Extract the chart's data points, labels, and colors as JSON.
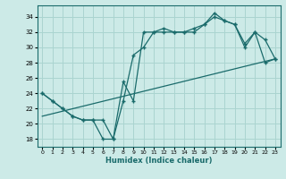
{
  "xlabel": "Humidex (Indice chaleur)",
  "background_color": "#cceae7",
  "line_color": "#1a6b6b",
  "grid_color": "#aad4d0",
  "xlim": [
    -0.5,
    23.5
  ],
  "ylim": [
    17,
    35.5
  ],
  "yticks": [
    18,
    20,
    22,
    24,
    26,
    28,
    30,
    32,
    34
  ],
  "xticks": [
    0,
    1,
    2,
    3,
    4,
    5,
    6,
    7,
    8,
    9,
    10,
    11,
    12,
    13,
    14,
    15,
    16,
    17,
    18,
    19,
    20,
    21,
    22,
    23
  ],
  "series1_x": [
    0,
    1,
    2,
    3,
    4,
    5,
    6,
    7,
    8,
    9,
    10,
    11,
    12,
    13,
    14,
    15,
    16,
    17,
    18,
    19,
    20,
    21,
    22,
    23
  ],
  "series1_y": [
    24,
    23,
    22,
    21,
    20.5,
    20.5,
    18,
    18,
    25.5,
    23,
    32,
    32,
    32,
    32,
    32,
    32,
    33,
    34,
    33.5,
    33,
    30.5,
    32,
    28,
    28.5
  ],
  "series2_x": [
    0,
    1,
    2,
    3,
    4,
    5,
    6,
    7,
    8,
    9,
    10,
    11,
    12,
    13,
    14,
    15,
    16,
    17,
    18,
    19,
    20,
    21,
    22,
    23
  ],
  "series2_y": [
    24,
    23,
    22,
    21,
    20.5,
    20.5,
    20.5,
    18,
    23,
    29,
    30,
    32,
    32.5,
    32,
    32,
    32.5,
    33,
    34.5,
    33.5,
    33,
    30,
    32,
    31,
    28.5
  ],
  "series3_x": [
    0,
    23
  ],
  "series3_y": [
    21,
    28.5
  ]
}
